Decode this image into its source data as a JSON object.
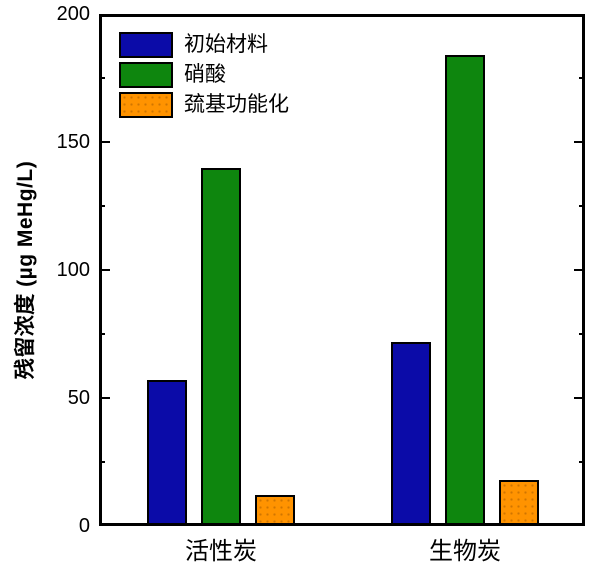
{
  "chart_data": {
    "type": "bar",
    "title": "",
    "categories": [
      "活性炭",
      "生物炭"
    ],
    "series": [
      {
        "name": "初始材料",
        "color": "#0b0ba8",
        "values": [
          57,
          72
        ]
      },
      {
        "name": "硝酸",
        "color": "#0e860e",
        "values": [
          140,
          184
        ]
      },
      {
        "name": "巯基功能化",
        "color": "#ff9300",
        "values": [
          12,
          18
        ],
        "pattern": "dots"
      }
    ],
    "xlabel": "",
    "ylabel": "残留浓度 (µg MeHg/L)",
    "ylim": [
      0,
      200
    ],
    "yticks_major": [
      0,
      50,
      100,
      150,
      200
    ],
    "yticks_minor": [
      25,
      75,
      125,
      175
    ],
    "grid": false,
    "legend_position": "top-left",
    "bar_outline_color": "#000000",
    "axis_color": "#000000",
    "background_color": "#ffffff"
  }
}
